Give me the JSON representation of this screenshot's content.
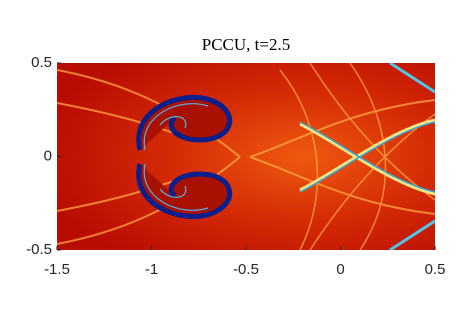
{
  "chart_data": {
    "type": "image",
    "title": "PCCU, t=2.5",
    "xlim": [
      -1.5,
      0.5
    ],
    "ylim": [
      -0.5,
      0.5
    ],
    "xticks": [
      -1.5,
      -1,
      -0.5,
      0,
      0.5
    ],
    "yticks": [
      -0.5,
      0,
      0.5
    ]
  }
}
